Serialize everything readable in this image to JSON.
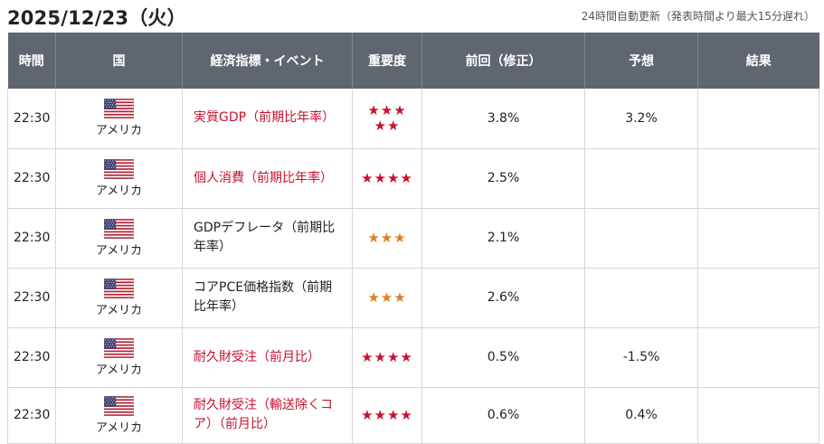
{
  "header": {
    "date": "2025/12/23（火）",
    "update_note": "24時間自動更新（発表時間より最大15分遅れ）"
  },
  "columns": {
    "time": "時間",
    "country": "国",
    "event": "経済指標・イベント",
    "importance": "重要度",
    "previous": "前回（修正）",
    "forecast": "予想",
    "result": "結果"
  },
  "colors": {
    "header_bg": "#5f6670",
    "high_importance": "#c8102e",
    "medium_importance": "#e07d1f"
  },
  "rows": [
    {
      "time": "22:30",
      "country": "アメリカ",
      "flag_icon": "us-flag-icon",
      "event": "実質GDP（前期比年率）",
      "stars": "★★★\n★★",
      "importance": 5,
      "importance_color": "red",
      "previous": "3.8%",
      "forecast": "3.2%",
      "result": ""
    },
    {
      "time": "22:30",
      "country": "アメリカ",
      "flag_icon": "us-flag-icon",
      "event": "個人消費（前期比年率）",
      "stars": "★★★★",
      "importance": 4,
      "importance_color": "red",
      "previous": "2.5%",
      "forecast": "",
      "result": ""
    },
    {
      "time": "22:30",
      "country": "アメリカ",
      "flag_icon": "us-flag-icon",
      "event": "GDPデフレータ（前期比年率）",
      "stars": "★★★",
      "importance": 3,
      "importance_color": "orange",
      "previous": "2.1%",
      "forecast": "",
      "result": ""
    },
    {
      "time": "22:30",
      "country": "アメリカ",
      "flag_icon": "us-flag-icon",
      "event": "コアPCE価格指数（前期比年率）",
      "stars": "★★★",
      "importance": 3,
      "importance_color": "orange",
      "previous": "2.6%",
      "forecast": "",
      "result": ""
    },
    {
      "time": "22:30",
      "country": "アメリカ",
      "flag_icon": "us-flag-icon",
      "event": "耐久財受注（前月比）",
      "stars": "★★★★",
      "importance": 4,
      "importance_color": "red",
      "previous": "0.5%",
      "forecast": "-1.5%",
      "result": ""
    },
    {
      "time": "22:30",
      "country": "アメリカ",
      "flag_icon": "us-flag-icon",
      "event": "耐久財受注（輸送除くコア）（前月比）",
      "stars": "★★★★",
      "importance": 4,
      "importance_color": "red",
      "previous": "0.6%",
      "forecast": "0.4%",
      "result": ""
    }
  ]
}
